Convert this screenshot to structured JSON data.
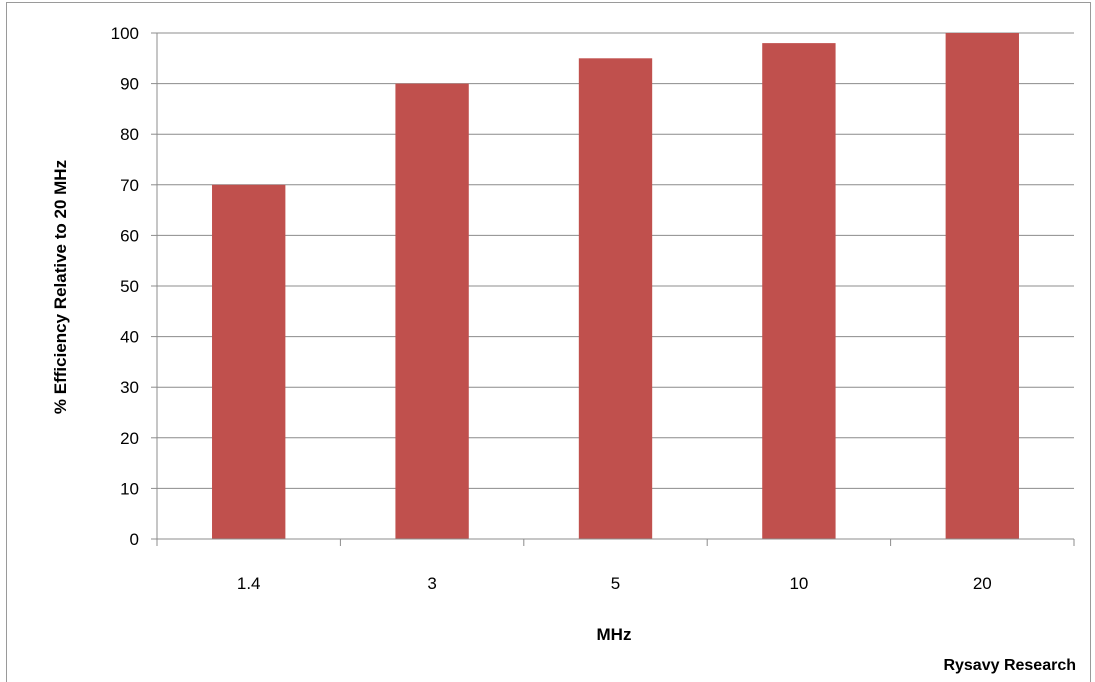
{
  "chart_data": {
    "type": "bar",
    "categories": [
      "1.4",
      "3",
      "5",
      "10",
      "20"
    ],
    "values": [
      70,
      90,
      95,
      98,
      100
    ],
    "title": "",
    "xlabel": "MHz",
    "ylabel": "% Efficiency  Relative to 20 MHz",
    "ylim": [
      0,
      100
    ],
    "yticks": [
      0,
      10,
      20,
      30,
      40,
      50,
      60,
      70,
      80,
      90,
      100
    ],
    "grid": true,
    "legend": "none",
    "bar_color": "#c0504d",
    "grid_color": "#8c8c8c"
  },
  "credit": "Rysavy  Research"
}
